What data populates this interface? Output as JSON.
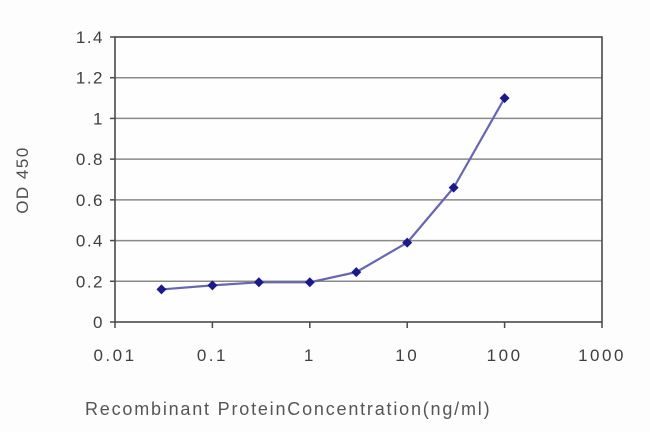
{
  "figure": {
    "background": "#fdfdfd"
  },
  "chart_data": {
    "type": "line",
    "title": "",
    "xlabel": "Recombinant ProteinConcentration(ng/ml)",
    "ylabel": "OD 450",
    "x_scale": "log",
    "xlim": [
      0.01,
      1000
    ],
    "ylim": [
      0,
      1.4
    ],
    "x_ticks": [
      0.01,
      0.1,
      1,
      10,
      100,
      1000
    ],
    "x_tick_labels": [
      "0.01",
      "0.1",
      "1",
      "10",
      "100",
      "1000"
    ],
    "y_ticks": [
      0,
      0.2,
      0.4,
      0.6,
      0.8,
      1,
      1.2,
      1.4
    ],
    "y_tick_labels": [
      "0",
      "0.2",
      "0.4",
      "0.6",
      "0.8",
      "1",
      "1.2",
      "1.4"
    ],
    "grid": true,
    "legend": false,
    "series": [
      {
        "x": [
          0.03,
          0.1,
          0.3,
          1,
          3,
          10,
          30,
          100
        ],
        "y": [
          0.16,
          0.18,
          0.195,
          0.195,
          0.245,
          0.39,
          0.66,
          1.1
        ],
        "marker": "diamond"
      }
    ],
    "colors": {
      "line": "#6666b2",
      "marker": "#1a1a8c",
      "grid": "#8a8a8a",
      "border": "#4a4a4a",
      "tick_text": "#3f3f3f",
      "plot_background": "#fefefe"
    }
  }
}
